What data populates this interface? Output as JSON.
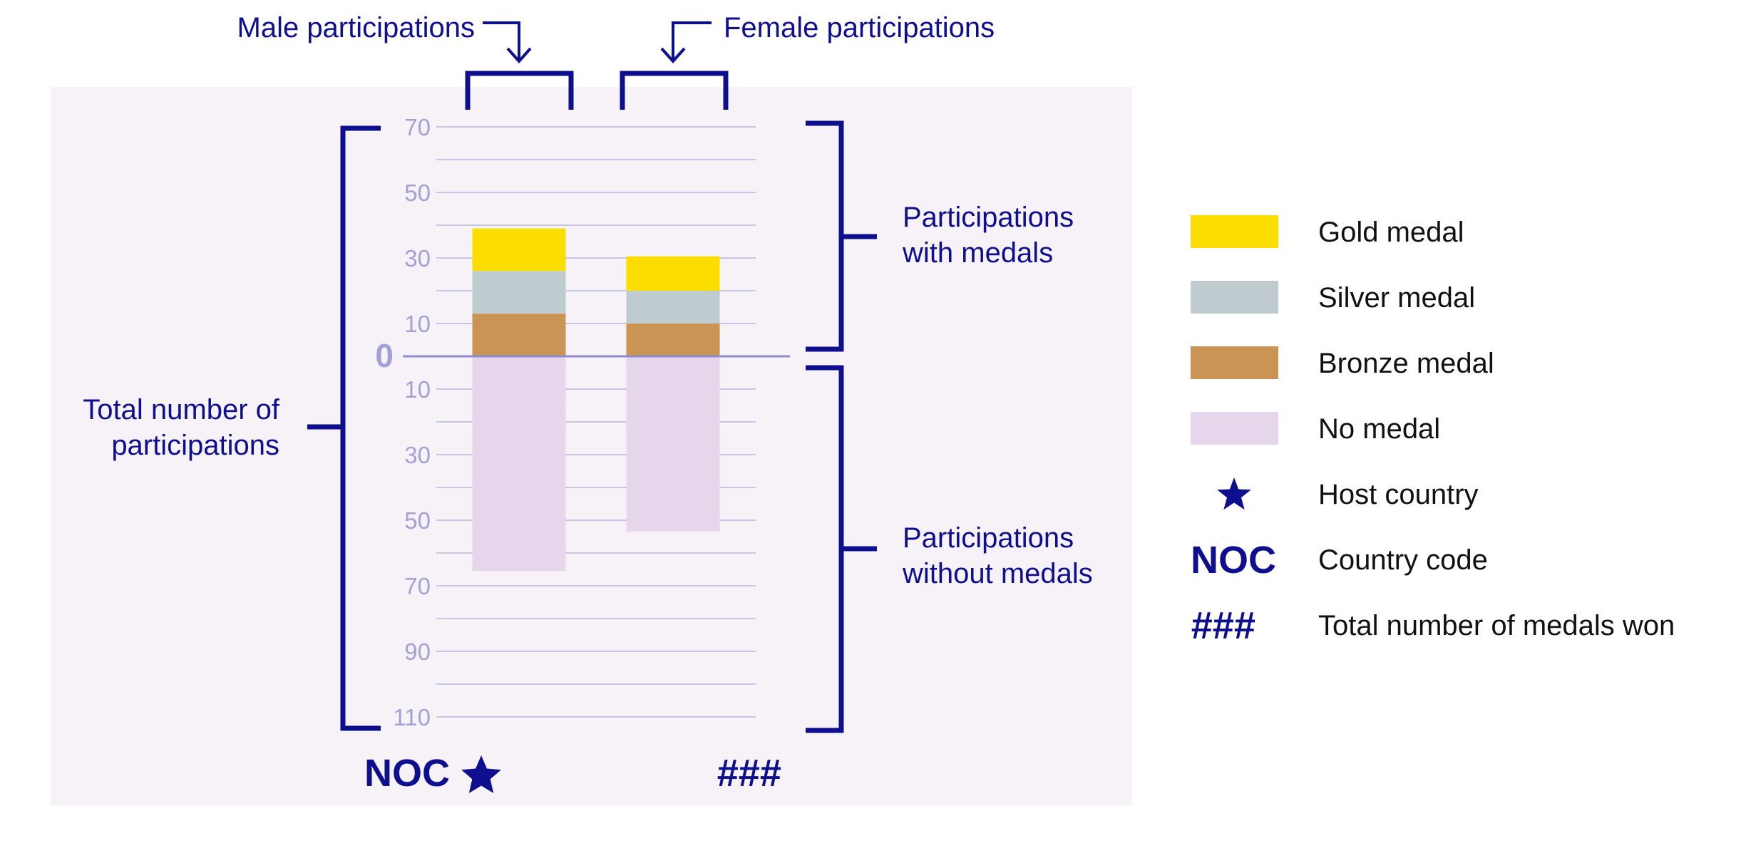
{
  "chart_data": {
    "type": "bar",
    "stacked": true,
    "diverging": true,
    "categories": [
      "Male participations",
      "Female participations"
    ],
    "y_above_label": "Participations with medals",
    "y_below_label": "Participations without medals",
    "y_total_label_line1": "Total number of",
    "y_total_label_line2": "participations",
    "ylim_up": [
      0,
      70
    ],
    "ylim_down": [
      0,
      110
    ],
    "ticks_up": [
      10,
      30,
      50,
      70
    ],
    "ticks_down": [
      10,
      30,
      50,
      70,
      90,
      110
    ],
    "zero_label": "0",
    "grid": true,
    "series": [
      {
        "key": "bronze",
        "name": "Bronze medal",
        "color": "#c99454",
        "direction": "up",
        "values": [
          13,
          10
        ]
      },
      {
        "key": "silver",
        "name": "Silver medal",
        "color": "#c0cbd0",
        "direction": "up",
        "values": [
          13,
          10
        ]
      },
      {
        "key": "gold",
        "name": "Gold medal",
        "color": "#fbde00",
        "direction": "up",
        "values": [
          13,
          10.5
        ]
      },
      {
        "key": "none",
        "name": "No medal",
        "color": "#e6d6ec",
        "direction": "down",
        "values": [
          65.5,
          53.5
        ]
      }
    ]
  },
  "annotations": {
    "male": "Male participations",
    "female": "Female participations",
    "with_line1": "Participations",
    "with_line2": "with medals",
    "without_line1": "Participations",
    "without_line2": "without medals"
  },
  "footer": {
    "noc": "NOC",
    "star_icon": "star-icon",
    "hash": "###"
  },
  "legend": {
    "items": [
      {
        "kind": "swatch",
        "color": "#fbde00",
        "label": "Gold medal"
      },
      {
        "kind": "swatch",
        "color": "#c0cbd0",
        "label": "Silver medal"
      },
      {
        "kind": "swatch",
        "color": "#c99454",
        "label": "Bronze medal"
      },
      {
        "kind": "swatch",
        "color": "#e6d6ec",
        "label": "No medal"
      },
      {
        "kind": "star",
        "label": "Host country"
      },
      {
        "kind": "text",
        "symbol": "NOC",
        "label": "Country code"
      },
      {
        "kind": "text",
        "symbol": "###",
        "label": "Total number of medals won"
      }
    ]
  },
  "colors": {
    "accent": "#0e0f8f",
    "panel": "#f7f2f8",
    "tick": "#a3a0d6",
    "grid": "#c7c5e6"
  }
}
